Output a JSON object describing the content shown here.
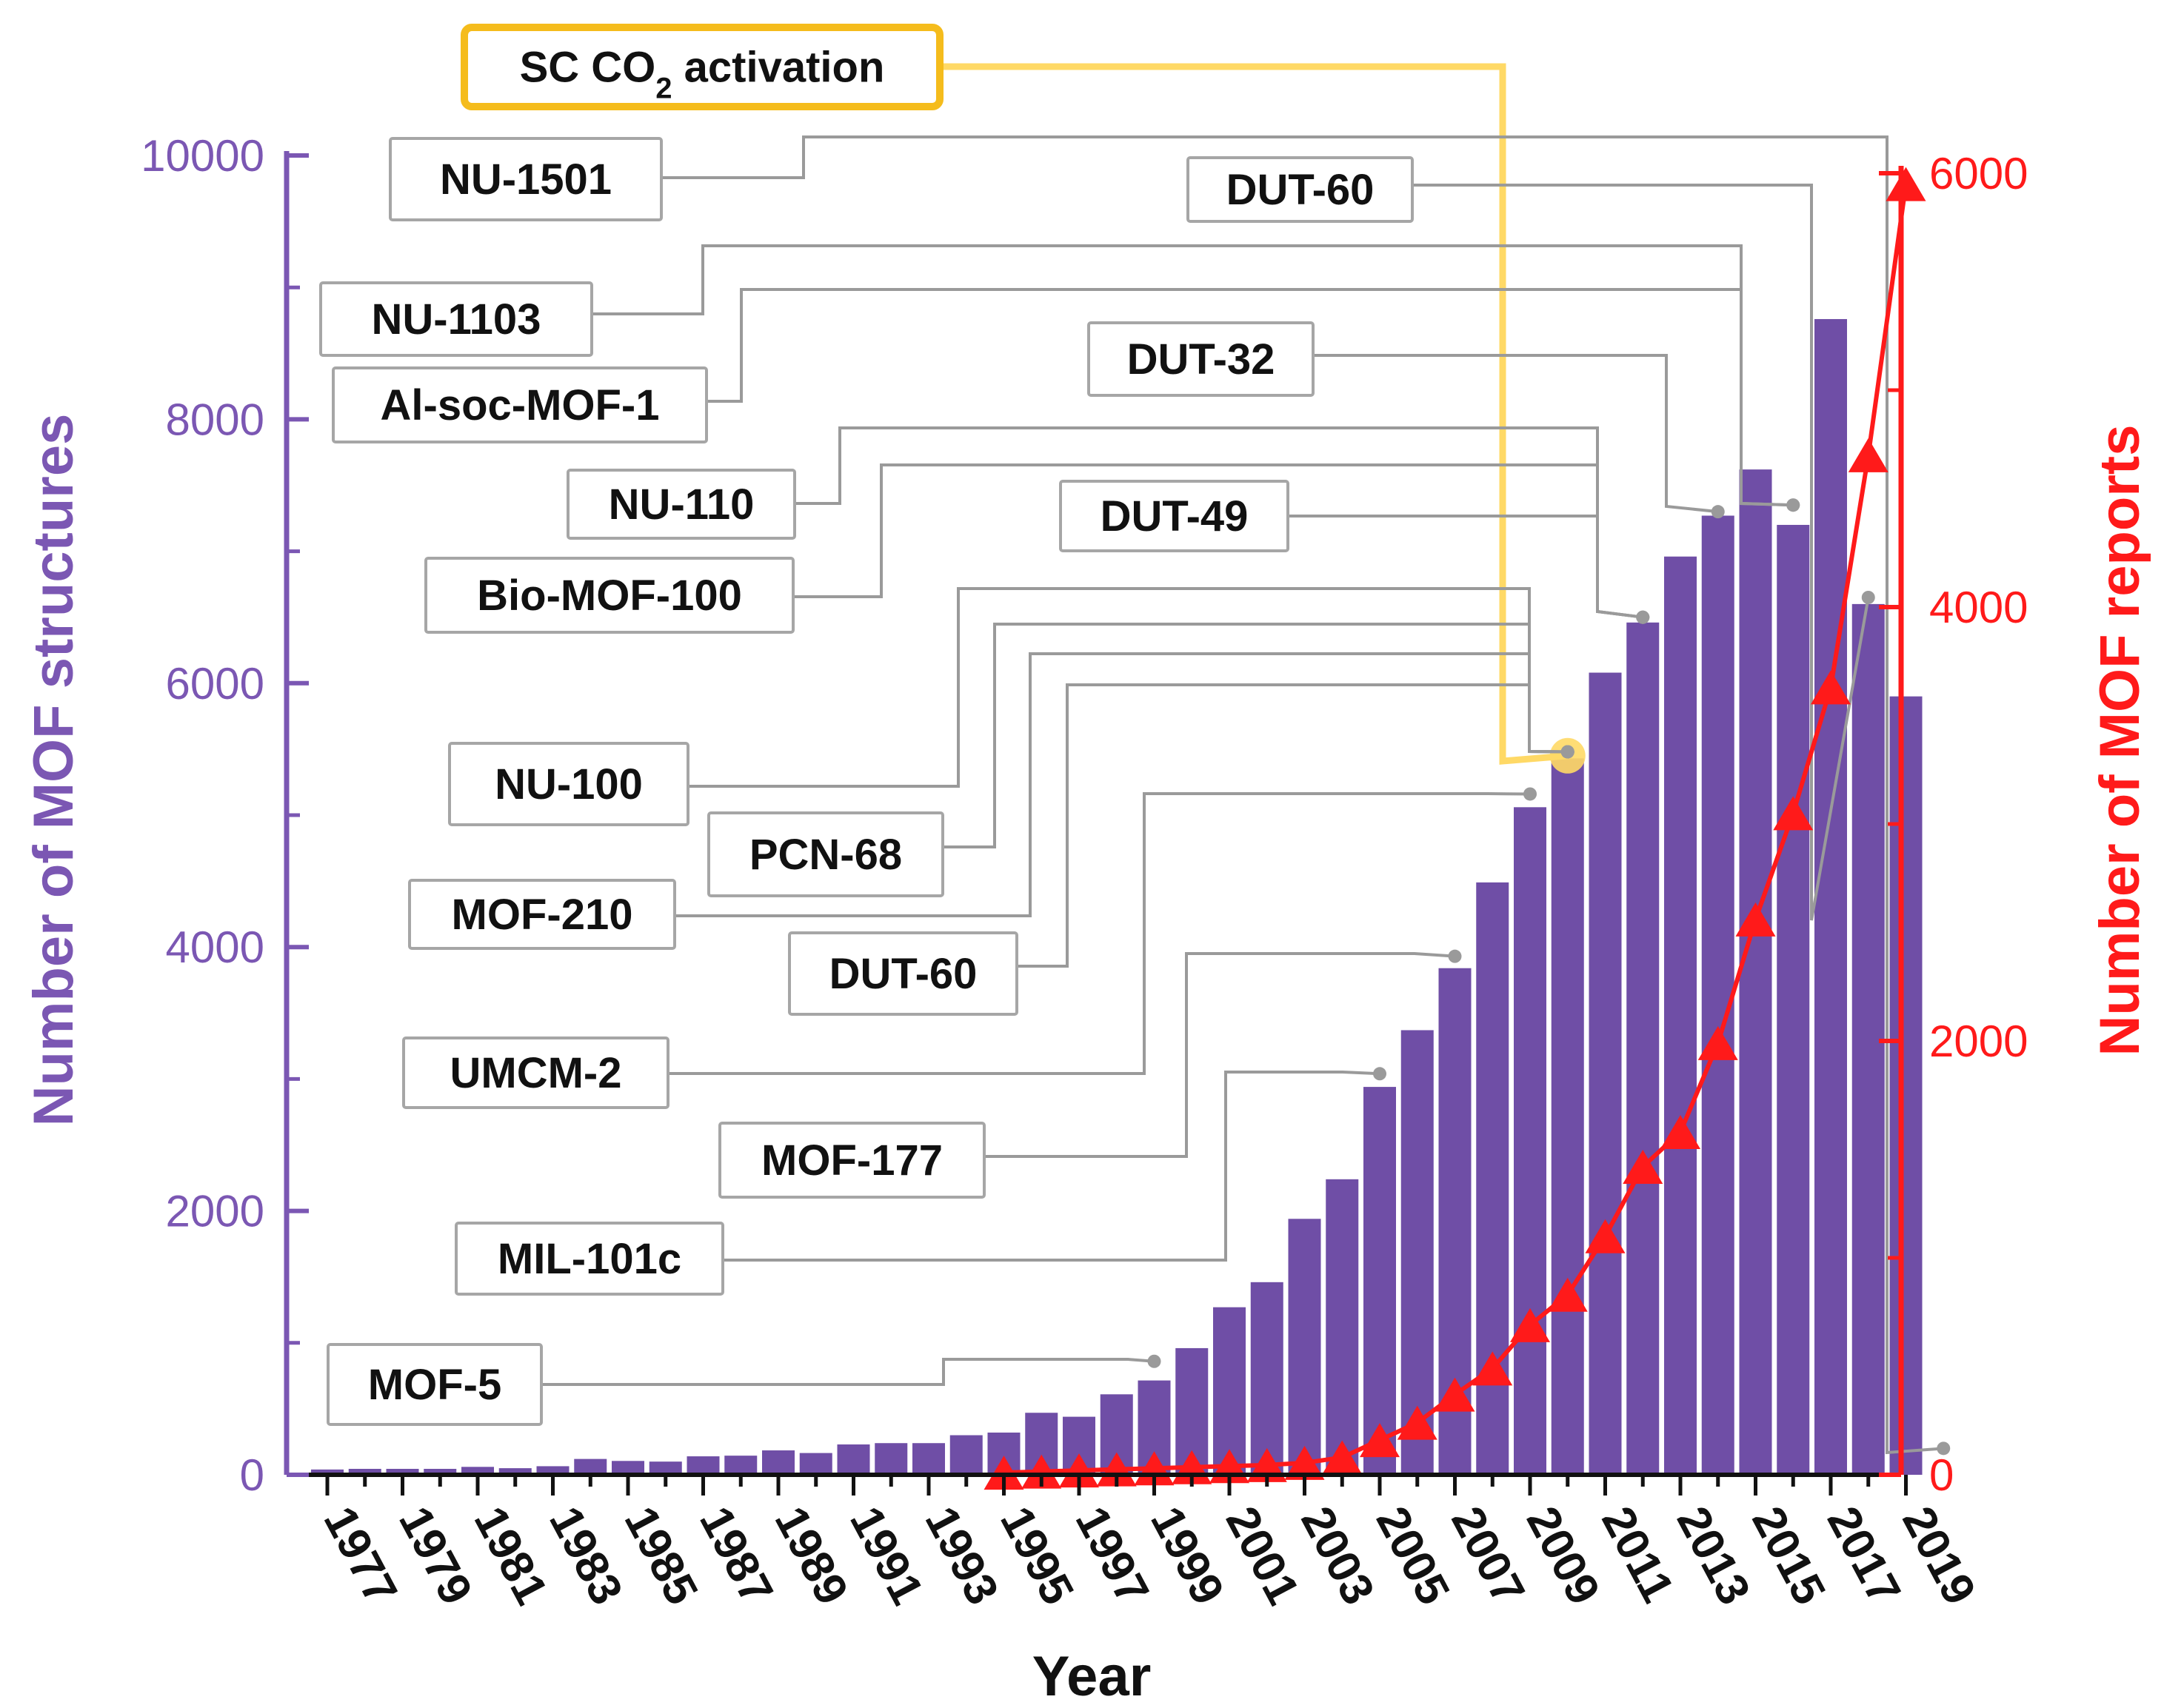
{
  "chart_data": {
    "type": "bar",
    "xlabel": "Year",
    "ylabel": "Number of MOF structures",
    "y2label": "Number of MOF reports",
    "ylim": [
      0,
      10000
    ],
    "y2lim": [
      0,
      6000
    ],
    "yticks": [
      0,
      2000,
      4000,
      6000,
      8000,
      10000
    ],
    "y2ticks": [
      0,
      2000,
      4000,
      6000
    ],
    "categories": [
      "1977",
      "1978",
      "1979",
      "1980",
      "1981",
      "1982",
      "1983",
      "1984",
      "1985",
      "1986",
      "1987",
      "1988",
      "1989",
      "1990",
      "1991",
      "1992",
      "1993",
      "1994",
      "1995",
      "1996",
      "1997",
      "1998",
      "1999",
      "2000",
      "2001",
      "2002",
      "2003",
      "2004",
      "2005",
      "2006",
      "2007",
      "2008",
      "2009",
      "2010",
      "2011",
      "2012",
      "2013",
      "2014",
      "2015",
      "2016",
      "2017",
      "2018",
      "2019"
    ],
    "tick_labels": [
      "1977",
      "1979",
      "1981",
      "1983",
      "1985",
      "1987",
      "1989",
      "1991",
      "1993",
      "1995",
      "1997",
      "1999",
      "2001",
      "2003",
      "2005",
      "2007",
      "2009",
      "2011",
      "2013",
      "2015",
      "2017",
      "2019"
    ],
    "series": [
      {
        "axis": "left",
        "mark": "bar",
        "color": "#6f4ea6",
        "values": [
          40,
          45,
          45,
          45,
          60,
          50,
          65,
          120,
          105,
          100,
          140,
          145,
          185,
          165,
          230,
          240,
          240,
          300,
          320,
          470,
          440,
          610,
          715,
          960,
          1270,
          1460,
          1940,
          2240,
          2940,
          3370,
          3840,
          4490,
          5060,
          5430,
          6080,
          6460,
          6960,
          7270,
          7620,
          7200,
          8760,
          6600,
          5900
        ]
      },
      {
        "axis": "right",
        "mark": "line-triangle",
        "color": "#ff1a1a",
        "x": [
          "1995",
          "1996",
          "1997",
          "1998",
          "1999",
          "2000",
          "2001",
          "2002",
          "2003",
          "2004",
          "2005",
          "2006",
          "2007",
          "2008",
          "2009",
          "2010",
          "2011",
          "2012",
          "2013",
          "2014",
          "2015",
          "2016",
          "2017",
          "2018",
          "2019"
        ],
        "values": [
          10,
          15,
          20,
          25,
          30,
          35,
          40,
          45,
          55,
          80,
          160,
          240,
          370,
          490,
          690,
          830,
          1100,
          1420,
          1580,
          1990,
          2560,
          3050,
          3630,
          4700,
          5950
        ]
      }
    ],
    "annotations": [
      {
        "label": "SC CO",
        "sub": "2",
        "label_suffix": " activation",
        "year": "2010",
        "value": 5450,
        "highlight": true
      },
      {
        "label": "NU-1501",
        "year": "2020",
        "value": 200
      },
      {
        "label": "DUT-60",
        "year": "2018",
        "value": 6650
      },
      {
        "label": "NU-1103",
        "year": "2016",
        "value": 7350
      },
      {
        "label": "Al-soc-MOF-1",
        "year": "2016",
        "value": 7350
      },
      {
        "label": "DUT-32",
        "year": "2014",
        "value": 7300
      },
      {
        "label": "NU-110",
        "year": "2012",
        "value": 6500
      },
      {
        "label": "Bio-MOF-100",
        "year": "2012",
        "value": 6500
      },
      {
        "label": "DUT-49",
        "year": "2012",
        "value": 6500
      },
      {
        "label": "NU-100",
        "year": "2010",
        "value": 5480
      },
      {
        "label": "PCN-68",
        "year": "2010",
        "value": 5480
      },
      {
        "label": "MOF-210",
        "year": "2010",
        "value": 5480
      },
      {
        "label": "DUT-60",
        "year": "2010",
        "value": 5480
      },
      {
        "label": "UMCM-2",
        "year": "2009",
        "value": 5160
      },
      {
        "label": "MOF-177",
        "year": "2007",
        "value": 3930
      },
      {
        "label": "MIL-101c",
        "year": "2005",
        "value": 3040
      },
      {
        "label": "MOF-5",
        "year": "1999",
        "value": 860
      }
    ]
  },
  "colors": {
    "left_axis": "#7b57b3",
    "right_axis": "#ff1a1a",
    "callout_line": "#9a9a9a",
    "callout_border": "#a6a6a6",
    "highlight_line": "#ffd966",
    "highlight_border": "#f5bc1c",
    "highlight_dot": "#ffd966"
  }
}
